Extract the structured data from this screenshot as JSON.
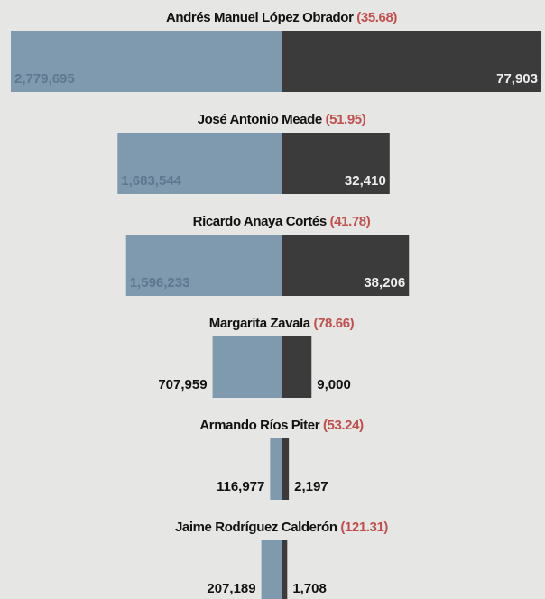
{
  "chart_data": {
    "type": "butterfly",
    "categories": [
      "Andrés Manuel López Obrador",
      "José Antonio Meade",
      "Ricardo Anaya Cortés",
      "Margarita Zavala",
      "Armando Ríos Piter",
      "Jaime Rodríguez Calderón"
    ],
    "series": [
      {
        "color": "#7f99ae",
        "values": [
          2779695,
          1683544,
          1596233,
          707959,
          116977,
          207189
        ],
        "value_labels": [
          "2,779,695",
          "1,683,544",
          "1,596,233",
          "707,959",
          "116,977",
          "207,189"
        ]
      },
      {
        "color": "#3b3b3b",
        "values": [
          77903,
          32410,
          38206,
          9000,
          2197,
          1708
        ],
        "value_labels": [
          "77,903",
          "32,410",
          "38,206",
          "9,000",
          "2,197",
          "1,708"
        ]
      },
      {
        "color": "#c0504d",
        "values": [
          35.68,
          51.95,
          41.78,
          78.66,
          53.24,
          121.31
        ],
        "value_labels": [
          "(35.68)",
          "(51.95)",
          "(41.78)",
          "(78.66)",
          "(53.24)",
          "(121.31)"
        ]
      }
    ]
  }
}
